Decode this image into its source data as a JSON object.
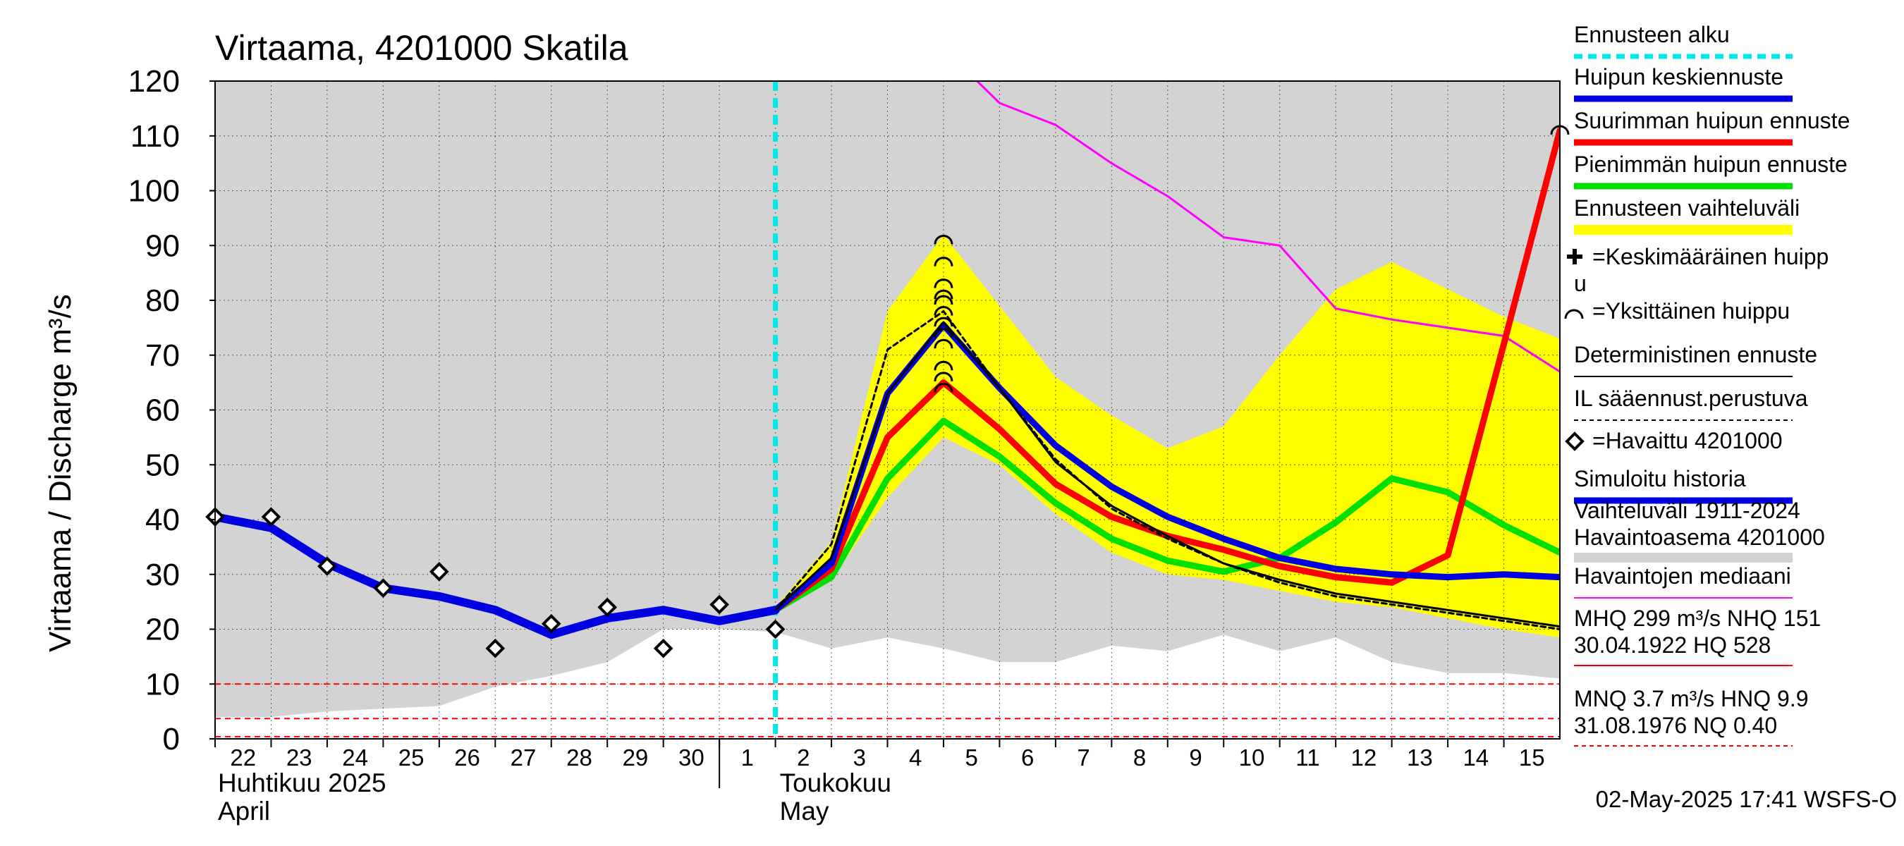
{
  "chart_data": {
    "type": "line",
    "title": "Virtaama, 4201000 Skatila",
    "ylabel": "Virtaama / Discharge    m³/s",
    "ylim": [
      0,
      120
    ],
    "y_ticks": [
      0,
      10,
      20,
      30,
      40,
      50,
      60,
      70,
      80,
      90,
      100,
      110,
      120
    ],
    "x_ticks": [
      "22",
      "23",
      "24",
      "25",
      "26",
      "27",
      "28",
      "29",
      "30",
      "1",
      "2",
      "3",
      "4",
      "5",
      "6",
      "7",
      "8",
      "9",
      "10",
      "11",
      "12",
      "13",
      "14",
      "15"
    ],
    "month_labels": {
      "april_fi": "Huhtikuu  2025",
      "april_en": "April",
      "may_fi": "Toukokuu",
      "may_en": "May"
    },
    "forecast_start": 10,
    "history_range_band": {
      "upper": [
        120,
        120,
        120,
        120,
        120,
        120,
        120,
        120,
        120,
        120,
        120,
        120,
        120,
        120,
        120,
        120,
        120,
        120,
        120,
        120,
        120,
        120,
        120,
        120,
        120
      ],
      "lower": [
        4,
        4,
        5,
        5.5,
        6,
        9.5,
        11.5,
        14,
        20,
        20,
        19.5,
        16.5,
        18.5,
        16.5,
        14,
        14,
        17,
        16,
        19,
        16,
        18.5,
        14,
        12,
        12,
        11
      ]
    },
    "forecast_band": {
      "upper": [
        24,
        36,
        78,
        92,
        79,
        66,
        59,
        53,
        57,
        70,
        82,
        87,
        82,
        77,
        73
      ],
      "lower": [
        23,
        29,
        44,
        55,
        50,
        41,
        34,
        30,
        29,
        27,
        25,
        24,
        22,
        20,
        18.5
      ]
    },
    "series": [
      {
        "name": "Simuloitu historia",
        "color": "#0000e0",
        "points": [
          [
            0,
            40.5
          ],
          [
            1,
            38.5
          ],
          [
            2,
            32
          ],
          [
            3,
            27.5
          ],
          [
            4,
            26
          ],
          [
            5,
            23.5
          ],
          [
            6,
            19
          ],
          [
            7,
            22
          ],
          [
            8,
            23.5
          ],
          [
            9,
            21.5
          ],
          [
            10,
            23.5
          ]
        ]
      },
      {
        "name": "Huipun keskiennuste",
        "color": "#0000e0",
        "points": [
          [
            10,
            23.5
          ],
          [
            11,
            32
          ],
          [
            12,
            63
          ],
          [
            13,
            75.5
          ],
          [
            14,
            64
          ],
          [
            15,
            53.5
          ],
          [
            16,
            46
          ],
          [
            17,
            40.5
          ],
          [
            18,
            36.5
          ],
          [
            19,
            33
          ],
          [
            20,
            31
          ],
          [
            21,
            30
          ],
          [
            22,
            29.5
          ],
          [
            23,
            30
          ],
          [
            24,
            29.5
          ]
        ]
      },
      {
        "name": "Suurimman huipun ennuste",
        "color": "#ff0000",
        "points": [
          [
            10,
            23.5
          ],
          [
            11,
            31
          ],
          [
            12,
            55
          ],
          [
            13,
            65
          ],
          [
            14,
            56.5
          ],
          [
            15,
            46.5
          ],
          [
            16,
            40.5
          ],
          [
            17,
            37
          ],
          [
            18,
            34.5
          ],
          [
            19,
            31.5
          ],
          [
            20,
            29.5
          ],
          [
            21,
            28.5
          ],
          [
            22,
            33.5
          ],
          [
            23,
            72
          ],
          [
            24,
            111
          ]
        ]
      },
      {
        "name": "Pienimmän huipun ennuste",
        "color": "#00e000",
        "points": [
          [
            10,
            23.5
          ],
          [
            11,
            29.5
          ],
          [
            12,
            47.5
          ],
          [
            13,
            58
          ],
          [
            14,
            51.5
          ],
          [
            15,
            43
          ],
          [
            16,
            36.5
          ],
          [
            17,
            32.5
          ],
          [
            18,
            30.5
          ],
          [
            19,
            33
          ],
          [
            20,
            39.5
          ],
          [
            21,
            47.5
          ],
          [
            22,
            45
          ],
          [
            23,
            39
          ],
          [
            24,
            34
          ]
        ]
      },
      {
        "name": "Deterministinen ennuste",
        "color": "#000000",
        "points": [
          [
            10,
            23.5
          ],
          [
            11,
            33
          ],
          [
            12,
            63
          ],
          [
            13,
            76
          ],
          [
            14,
            64
          ],
          [
            15,
            50.5
          ],
          [
            16,
            42.5
          ],
          [
            17,
            37
          ],
          [
            18,
            32
          ],
          [
            19,
            29
          ],
          [
            20,
            26.5
          ],
          [
            21,
            25
          ],
          [
            22,
            23.5
          ],
          [
            23,
            22
          ],
          [
            24,
            20.5
          ]
        ]
      },
      {
        "name": "IL sääennust.perustuva",
        "color": "#000000",
        "points": [
          [
            10,
            23.5
          ],
          [
            11,
            35.5
          ],
          [
            12,
            71
          ],
          [
            13,
            78
          ],
          [
            14,
            64
          ],
          [
            15,
            51
          ],
          [
            16,
            42
          ],
          [
            17,
            36.5
          ],
          [
            18,
            32
          ],
          [
            19,
            28.5
          ],
          [
            20,
            26
          ],
          [
            21,
            24.5
          ],
          [
            22,
            23
          ],
          [
            23,
            21.5
          ],
          [
            24,
            20
          ]
        ]
      },
      {
        "name": "Havaintojen mediaani",
        "color": "#ff00ff",
        "points": [
          [
            13.6,
            120
          ],
          [
            14,
            116
          ],
          [
            15,
            112
          ],
          [
            16,
            105
          ],
          [
            17,
            99
          ],
          [
            18,
            91.5
          ],
          [
            19,
            90
          ],
          [
            20,
            78.5
          ],
          [
            21,
            76.5
          ],
          [
            22,
            75
          ],
          [
            23,
            73.5
          ],
          [
            24,
            67
          ]
        ]
      }
    ],
    "observed": [
      [
        0,
        40.5
      ],
      [
        1,
        40.5
      ],
      [
        2,
        31.5
      ],
      [
        3,
        27.5
      ],
      [
        4,
        30.5
      ],
      [
        5,
        16.5
      ],
      [
        6,
        21
      ],
      [
        7,
        24
      ],
      [
        8,
        16.5
      ],
      [
        9,
        24.5
      ],
      [
        10,
        20
      ]
    ],
    "single_peaks": [
      [
        13,
        91
      ],
      [
        13,
        87
      ],
      [
        13,
        83
      ],
      [
        13,
        81
      ],
      [
        13,
        80
      ],
      [
        13,
        78
      ],
      [
        13,
        76
      ],
      [
        13,
        74
      ],
      [
        13,
        72
      ],
      [
        13,
        68
      ],
      [
        13,
        66
      ],
      [
        13,
        64
      ],
      [
        24,
        111
      ]
    ],
    "reference_lines": [
      10,
      3.7,
      0.4
    ],
    "legend_position": "right",
    "grid": true,
    "legend": [
      {
        "label": "Ennusteen alku",
        "kind": "dashed-line",
        "color": "#00e8e8"
      },
      {
        "label": "Huipun keskiennuste",
        "kind": "line",
        "color": "#0000e0"
      },
      {
        "label": "Suurimman huipun ennuste",
        "kind": "line",
        "color": "#ff0000"
      },
      {
        "label": "Pienimmän huipun ennuste",
        "kind": "line",
        "color": "#00e000"
      },
      {
        "label": "Ennusteen vaihteluväli",
        "kind": "band",
        "color": "#ffff00"
      },
      {
        "label": "=Keskimääräinen huipp",
        "label2": "u",
        "kind": "plus-marker",
        "color": "#000000"
      },
      {
        "label": "=Yksittäinen huippu",
        "kind": "arc-marker",
        "color": "#000000"
      },
      {
        "label": "Deterministinen ennuste",
        "kind": "thin-line",
        "color": "#000000"
      },
      {
        "label": "IL sääennust.perustuva",
        "kind": "dashed-thin",
        "color": "#000000"
      },
      {
        "label": "=Havaittu 4201000",
        "kind": "diamond-marker",
        "color": "#000000"
      },
      {
        "label": "Simuloitu historia",
        "kind": "line",
        "color": "#0000e0"
      },
      {
        "label": "Vaihteluväli 1911-2024",
        "label2": " Havaintoasema 4201000",
        "kind": "band",
        "color": "#d3d3d3"
      },
      {
        "label": "Havaintojen mediaani",
        "kind": "thin-line",
        "color": "#ff00ff"
      },
      {
        "label": "MHQ  299 m³/s NHQ  151",
        "label2": "30.04.1922 HQ  528",
        "kind": "thin-line",
        "color": "#ff0000"
      },
      {
        "label": "MNQ  3.7 m³/s HNQ  9.9",
        "label2": "31.08.1976 NQ 0.40",
        "kind": "dashed-thin",
        "color": "#ff0000"
      }
    ],
    "footer": "02-May-2025 17:41 WSFS-O"
  },
  "colors": {
    "history_band": "#d3d3d3",
    "forecast_band": "#ffff00",
    "forecast_start": "#00e8e8",
    "reference": "#ff0000",
    "grid": "#000000"
  }
}
